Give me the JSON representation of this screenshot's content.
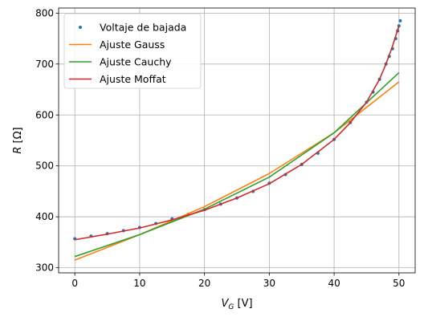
{
  "chart_data": {
    "type": "line",
    "xlabel": "V_G [V]",
    "ylabel": "R [Ω]",
    "xlim": [
      -2.5,
      52.5
    ],
    "ylim": [
      290,
      810
    ],
    "xticks": [
      0,
      10,
      20,
      30,
      40,
      50
    ],
    "yticks": [
      300,
      400,
      500,
      600,
      700,
      800
    ],
    "grid": true,
    "legend_position": "top-left",
    "series": [
      {
        "name": "Voltaje de bajada",
        "kind": "scatter",
        "color": "#1f77b4",
        "x": [
          0,
          2.5,
          5,
          7.5,
          10,
          12.5,
          15,
          17.5,
          20,
          22.5,
          25,
          27.5,
          30,
          32.5,
          35,
          37.5,
          40,
          42.5,
          45,
          46,
          47,
          48,
          48.5,
          49,
          49.5,
          49.8,
          50,
          50.2
        ],
        "y": [
          357,
          362,
          367,
          373,
          379,
          387,
          396,
          405,
          414,
          425,
          437,
          450,
          466,
          483,
          503,
          525,
          552,
          585,
          625,
          645,
          670,
          700,
          715,
          730,
          750,
          765,
          775,
          785
        ]
      },
      {
        "name": "Ajuste Gauss",
        "kind": "line",
        "color": "#ff7f0e",
        "x": [
          0,
          10,
          20,
          30,
          40,
          50
        ],
        "y": [
          315,
          365,
          420,
          485,
          565,
          665
        ]
      },
      {
        "name": "Ajuste Cauchy",
        "kind": "line",
        "color": "#2ca02c",
        "x": [
          0,
          10,
          20,
          30,
          40,
          50
        ],
        "y": [
          322,
          365,
          415,
          478,
          565,
          683
        ]
      },
      {
        "name": "Ajuste Moffat",
        "kind": "line",
        "color": "#d62728",
        "x": [
          0,
          5,
          10,
          15,
          20,
          25,
          30,
          35,
          40,
          42.5,
          45,
          47,
          48,
          49,
          49.5,
          50
        ],
        "y": [
          355,
          366,
          378,
          394,
          413,
          437,
          465,
          503,
          552,
          585,
          625,
          670,
          700,
          735,
          755,
          775
        ]
      }
    ]
  }
}
